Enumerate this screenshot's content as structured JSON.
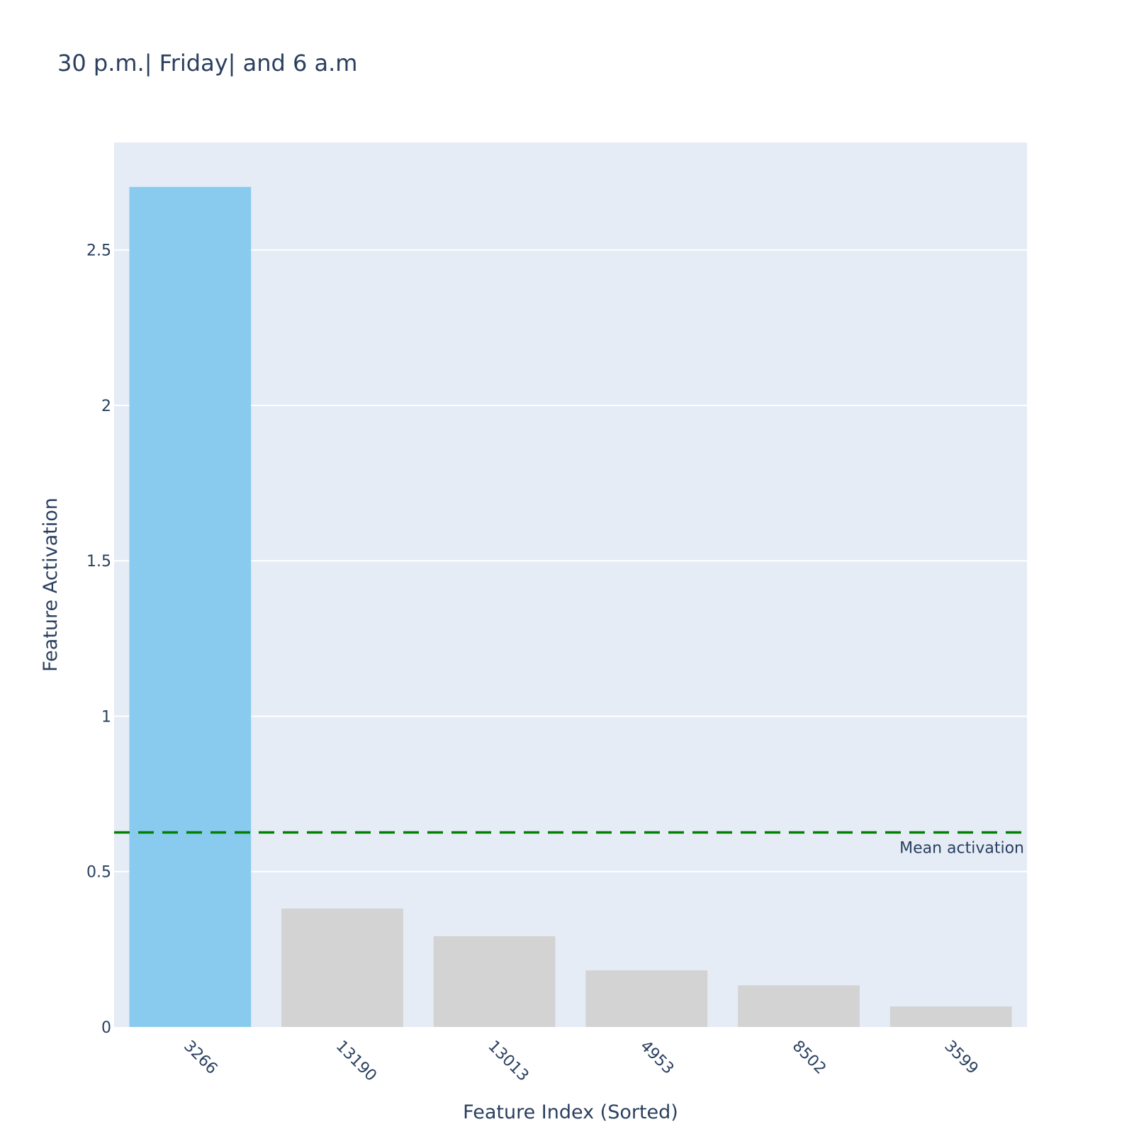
{
  "chart_data": {
    "type": "bar",
    "title": "30 p.m.| Friday| and 6 a.m",
    "xlabel": "Feature Index (Sorted)",
    "ylabel": "Feature Activation",
    "categories": [
      "3266",
      "13190",
      "13013",
      "4953",
      "8502",
      "3599"
    ],
    "values": [
      2.703,
      0.381,
      0.292,
      0.182,
      0.134,
      0.066
    ],
    "bar_colors": [
      "#89cbee",
      "#d3d3d3",
      "#d3d3d3",
      "#d3d3d3",
      "#d3d3d3",
      "#d3d3d3"
    ],
    "ylim": [
      0,
      2.846
    ],
    "yticks": [
      0,
      0.5,
      1,
      1.5,
      2,
      2.5
    ],
    "ytick_labels": [
      "0",
      "0.5",
      "1",
      "1.5",
      "2",
      "2.5"
    ],
    "grid": true,
    "reference_line": {
      "value": 0.626,
      "label": "Mean activation",
      "color": "#008000",
      "style": "dashed"
    },
    "colors": {
      "plot_background": "#e5ecf6",
      "gridline": "#ffffff",
      "text": "#2a3f5f"
    }
  }
}
